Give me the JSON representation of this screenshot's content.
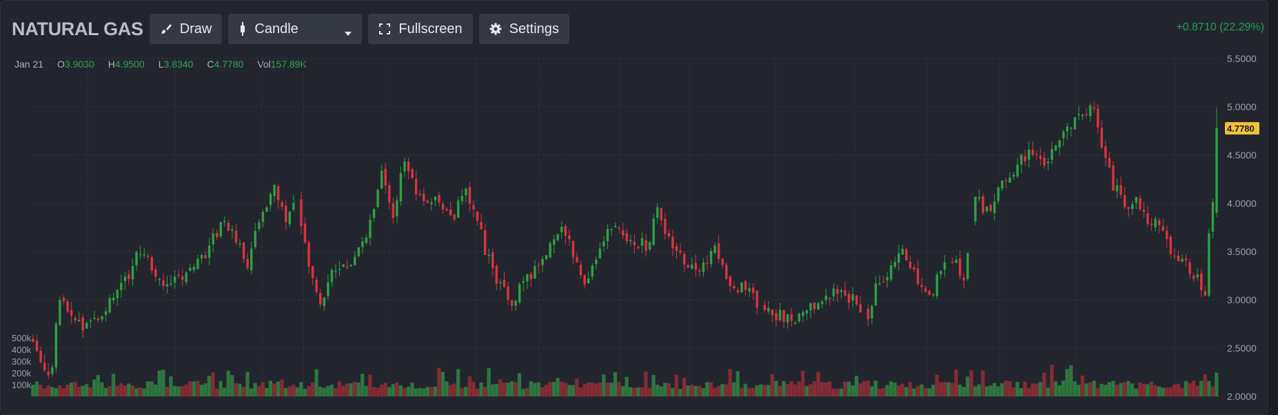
{
  "instrument": "NATURAL GAS",
  "toolbar": {
    "draw_label": "Draw",
    "chart_type_label": "Candle",
    "fullscreen_label": "Fullscreen",
    "settings_label": "Settings"
  },
  "change": "+0.8710 (22.29%)",
  "ohlc": {
    "date": "Jan 21",
    "o_label": "O",
    "o": "3.9030",
    "h_label": "H",
    "h": "4.9500",
    "l_label": "L",
    "l": "3.8340",
    "c_label": "C",
    "c": "4.7780",
    "vol_label": "Vol",
    "vol": "157.89K"
  },
  "colors": {
    "up": "#2ea043",
    "down": "#d9343f",
    "last_price": "#f0c13a",
    "accent_green": "#23a05a"
  },
  "chart_data": {
    "type": "candlestick",
    "price_axis": {
      "ticks": [
        "5.5000",
        "5.0000",
        "4.5000",
        "4.0000",
        "3.5000",
        "3.0000",
        "2.5000",
        "2.0000"
      ],
      "range": [
        2.0,
        5.5
      ]
    },
    "volume_axis": {
      "ticks": [
        "500k",
        "400k",
        "300k",
        "200k",
        "100k"
      ],
      "range": [
        0,
        500000
      ]
    },
    "last_price": "4.7780",
    "grid": true,
    "price_path": [
      [
        0,
        2.6
      ],
      [
        2,
        2.4
      ],
      [
        4,
        2.25
      ],
      [
        5,
        2.35
      ],
      [
        7,
        3.05
      ],
      [
        10,
        2.8
      ],
      [
        14,
        2.72
      ],
      [
        17,
        2.85
      ],
      [
        20,
        3.0
      ],
      [
        24,
        3.2
      ],
      [
        28,
        3.5
      ],
      [
        32,
        3.3
      ],
      [
        35,
        3.1
      ],
      [
        40,
        3.3
      ],
      [
        45,
        3.5
      ],
      [
        50,
        3.85
      ],
      [
        53,
        3.6
      ],
      [
        56,
        3.4
      ],
      [
        60,
        3.9
      ],
      [
        63,
        4.25
      ],
      [
        66,
        3.8
      ],
      [
        69,
        4.05
      ],
      [
        72,
        3.3
      ],
      [
        75,
        3.0
      ],
      [
        78,
        3.25
      ],
      [
        83,
        3.4
      ],
      [
        86,
        3.55
      ],
      [
        91,
        4.3
      ],
      [
        94,
        3.9
      ],
      [
        97,
        4.45
      ],
      [
        100,
        4.1
      ],
      [
        105,
        4.0
      ],
      [
        110,
        3.9
      ],
      [
        113,
        4.1
      ],
      [
        116,
        3.8
      ],
      [
        119,
        3.4
      ],
      [
        122,
        3.15
      ],
      [
        125,
        3.0
      ],
      [
        130,
        3.25
      ],
      [
        134,
        3.5
      ],
      [
        138,
        3.8
      ],
      [
        141,
        3.5
      ],
      [
        144,
        3.1
      ],
      [
        148,
        3.6
      ],
      [
        152,
        3.75
      ],
      [
        156,
        3.65
      ],
      [
        160,
        3.55
      ],
      [
        163,
        3.9
      ],
      [
        167,
        3.6
      ],
      [
        170,
        3.4
      ],
      [
        174,
        3.3
      ],
      [
        178,
        3.55
      ],
      [
        182,
        3.15
      ],
      [
        186,
        3.1
      ],
      [
        190,
        2.95
      ],
      [
        194,
        2.85
      ],
      [
        198,
        2.78
      ],
      [
        202,
        2.85
      ],
      [
        206,
        3.05
      ],
      [
        210,
        3.1
      ],
      [
        214,
        3.0
      ],
      [
        218,
        2.85
      ],
      [
        220,
        3.15
      ],
      [
        224,
        3.3
      ],
      [
        227,
        3.5
      ],
      [
        230,
        3.3
      ],
      [
        234,
        3.0
      ],
      [
        237,
        3.3
      ],
      [
        240,
        3.45
      ],
      [
        243,
        3.25
      ],
      [
        246,
        4.1
      ],
      [
        249,
        3.9
      ],
      [
        252,
        4.15
      ],
      [
        256,
        4.35
      ],
      [
        260,
        4.55
      ],
      [
        264,
        4.45
      ],
      [
        268,
        4.65
      ],
      [
        272,
        4.85
      ],
      [
        275,
        4.95
      ],
      [
        277,
        5.05
      ],
      [
        279,
        4.6
      ],
      [
        282,
        4.2
      ],
      [
        285,
        3.95
      ],
      [
        288,
        4.0
      ],
      [
        291,
        3.85
      ],
      [
        295,
        3.7
      ],
      [
        298,
        3.45
      ],
      [
        301,
        3.35
      ],
      [
        304,
        3.2
      ],
      [
        306,
        3.1
      ],
      [
        307,
        3.65
      ],
      [
        309,
        4.35
      ]
    ],
    "gaps": [
      [
        68,
        70
      ],
      [
        76,
        77
      ],
      [
        189,
        191
      ],
      [
        216,
        218
      ],
      [
        238,
        240
      ],
      [
        244,
        246
      ]
    ],
    "note_hidden": ""
  }
}
